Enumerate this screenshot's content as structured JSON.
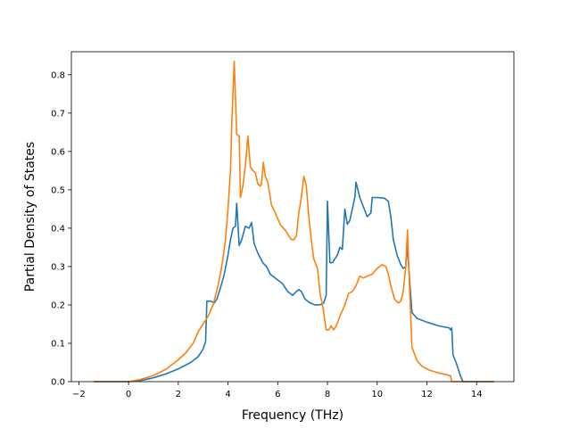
{
  "chart_data": {
    "type": "line",
    "title": "",
    "xlabel": "Frequency (THz)",
    "ylabel": "Partial Density of States",
    "xlim": [
      -2.3,
      15.5
    ],
    "ylim": [
      0.0,
      0.86
    ],
    "xticks": [
      -2,
      0,
      2,
      4,
      6,
      8,
      10,
      12,
      14
    ],
    "yticks": [
      0.0,
      0.1,
      0.2,
      0.3,
      0.4,
      0.5,
      0.6,
      0.7,
      0.8
    ],
    "xtick_labels": [
      "−2",
      "0",
      "2",
      "4",
      "6",
      "8",
      "10",
      "12",
      "14"
    ],
    "ytick_labels": [
      "0.0",
      "0.1",
      "0.2",
      "0.3",
      "0.4",
      "0.5",
      "0.6",
      "0.7",
      "0.8"
    ],
    "grid": false,
    "legend": "none",
    "series": [
      {
        "color": "#1f77b4",
        "points": [
          [
            -1.4,
            0.0
          ],
          [
            0.0,
            0.0
          ],
          [
            0.5,
            0.003
          ],
          [
            1.0,
            0.01
          ],
          [
            1.5,
            0.02
          ],
          [
            2.0,
            0.033
          ],
          [
            2.5,
            0.05
          ],
          [
            2.8,
            0.065
          ],
          [
            3.0,
            0.085
          ],
          [
            3.1,
            0.105
          ],
          [
            3.15,
            0.21
          ],
          [
            3.3,
            0.21
          ],
          [
            3.45,
            0.205
          ],
          [
            3.55,
            0.215
          ],
          [
            3.7,
            0.245
          ],
          [
            3.85,
            0.28
          ],
          [
            4.0,
            0.33
          ],
          [
            4.1,
            0.37
          ],
          [
            4.2,
            0.4
          ],
          [
            4.3,
            0.405
          ],
          [
            4.35,
            0.465
          ],
          [
            4.45,
            0.355
          ],
          [
            4.55,
            0.37
          ],
          [
            4.7,
            0.405
          ],
          [
            4.85,
            0.4
          ],
          [
            4.95,
            0.415
          ],
          [
            5.05,
            0.36
          ],
          [
            5.2,
            0.335
          ],
          [
            5.4,
            0.31
          ],
          [
            5.55,
            0.3
          ],
          [
            5.7,
            0.28
          ],
          [
            6.0,
            0.265
          ],
          [
            6.2,
            0.255
          ],
          [
            6.4,
            0.235
          ],
          [
            6.6,
            0.225
          ],
          [
            6.75,
            0.235
          ],
          [
            6.85,
            0.24
          ],
          [
            6.95,
            0.235
          ],
          [
            7.1,
            0.215
          ],
          [
            7.3,
            0.205
          ],
          [
            7.5,
            0.2
          ],
          [
            7.7,
            0.2
          ],
          [
            7.85,
            0.205
          ],
          [
            7.95,
            0.225
          ],
          [
            8.0,
            0.47
          ],
          [
            8.1,
            0.31
          ],
          [
            8.2,
            0.31
          ],
          [
            8.3,
            0.32
          ],
          [
            8.4,
            0.33
          ],
          [
            8.5,
            0.35
          ],
          [
            8.6,
            0.345
          ],
          [
            8.7,
            0.45
          ],
          [
            8.8,
            0.41
          ],
          [
            8.9,
            0.42
          ],
          [
            9.0,
            0.45
          ],
          [
            9.1,
            0.48
          ],
          [
            9.15,
            0.52
          ],
          [
            9.3,
            0.48
          ],
          [
            9.45,
            0.455
          ],
          [
            9.6,
            0.43
          ],
          [
            9.75,
            0.44
          ],
          [
            9.8,
            0.48
          ],
          [
            10.0,
            0.48
          ],
          [
            10.3,
            0.478
          ],
          [
            10.45,
            0.47
          ],
          [
            10.55,
            0.43
          ],
          [
            10.65,
            0.37
          ],
          [
            10.8,
            0.33
          ],
          [
            10.95,
            0.305
          ],
          [
            11.05,
            0.295
          ],
          [
            11.15,
            0.3
          ],
          [
            11.2,
            0.36
          ],
          [
            11.3,
            0.27
          ],
          [
            11.4,
            0.18
          ],
          [
            11.6,
            0.165
          ],
          [
            12.0,
            0.155
          ],
          [
            12.5,
            0.145
          ],
          [
            12.9,
            0.14
          ],
          [
            12.95,
            0.135
          ],
          [
            13.0,
            0.14
          ],
          [
            13.05,
            0.07
          ],
          [
            13.2,
            0.045
          ],
          [
            13.35,
            0.015
          ],
          [
            13.45,
            0.0
          ],
          [
            14.7,
            0.0
          ]
        ]
      },
      {
        "color": "#ff7f0e",
        "points": [
          [
            -1.4,
            0.0
          ],
          [
            0.0,
            0.0
          ],
          [
            0.5,
            0.006
          ],
          [
            1.0,
            0.016
          ],
          [
            1.5,
            0.032
          ],
          [
            2.0,
            0.057
          ],
          [
            2.3,
            0.075
          ],
          [
            2.6,
            0.1
          ],
          [
            2.8,
            0.13
          ],
          [
            3.0,
            0.15
          ],
          [
            3.2,
            0.17
          ],
          [
            3.4,
            0.2
          ],
          [
            3.6,
            0.25
          ],
          [
            3.75,
            0.3
          ],
          [
            3.9,
            0.37
          ],
          [
            4.0,
            0.45
          ],
          [
            4.1,
            0.55
          ],
          [
            4.15,
            0.67
          ],
          [
            4.25,
            0.835
          ],
          [
            4.3,
            0.74
          ],
          [
            4.35,
            0.645
          ],
          [
            4.45,
            0.64
          ],
          [
            4.5,
            0.48
          ],
          [
            4.6,
            0.51
          ],
          [
            4.7,
            0.565
          ],
          [
            4.8,
            0.64
          ],
          [
            4.9,
            0.56
          ],
          [
            5.0,
            0.55
          ],
          [
            5.1,
            0.545
          ],
          [
            5.2,
            0.515
          ],
          [
            5.3,
            0.51
          ],
          [
            5.35,
            0.515
          ],
          [
            5.42,
            0.572
          ],
          [
            5.5,
            0.535
          ],
          [
            5.6,
            0.52
          ],
          [
            5.75,
            0.46
          ],
          [
            5.9,
            0.44
          ],
          [
            6.1,
            0.41
          ],
          [
            6.3,
            0.395
          ],
          [
            6.45,
            0.38
          ],
          [
            6.55,
            0.37
          ],
          [
            6.65,
            0.37
          ],
          [
            6.75,
            0.38
          ],
          [
            6.85,
            0.44
          ],
          [
            6.95,
            0.48
          ],
          [
            7.05,
            0.535
          ],
          [
            7.15,
            0.51
          ],
          [
            7.25,
            0.43
          ],
          [
            7.35,
            0.37
          ],
          [
            7.45,
            0.32
          ],
          [
            7.6,
            0.295
          ],
          [
            7.7,
            0.23
          ],
          [
            7.8,
            0.2
          ],
          [
            7.95,
            0.135
          ],
          [
            8.05,
            0.135
          ],
          [
            8.15,
            0.145
          ],
          [
            8.25,
            0.135
          ],
          [
            8.35,
            0.145
          ],
          [
            8.5,
            0.17
          ],
          [
            8.7,
            0.2
          ],
          [
            8.85,
            0.23
          ],
          [
            9.0,
            0.235
          ],
          [
            9.15,
            0.25
          ],
          [
            9.3,
            0.275
          ],
          [
            9.45,
            0.27
          ],
          [
            9.6,
            0.275
          ],
          [
            9.8,
            0.28
          ],
          [
            10.0,
            0.295
          ],
          [
            10.2,
            0.305
          ],
          [
            10.35,
            0.3
          ],
          [
            10.45,
            0.28
          ],
          [
            10.55,
            0.25
          ],
          [
            10.7,
            0.215
          ],
          [
            10.85,
            0.205
          ],
          [
            10.95,
            0.21
          ],
          [
            11.05,
            0.235
          ],
          [
            11.15,
            0.3
          ],
          [
            11.22,
            0.395
          ],
          [
            11.3,
            0.25
          ],
          [
            11.4,
            0.09
          ],
          [
            11.6,
            0.055
          ],
          [
            11.8,
            0.04
          ],
          [
            12.1,
            0.03
          ],
          [
            12.5,
            0.022
          ],
          [
            12.8,
            0.018
          ],
          [
            12.95,
            0.015
          ],
          [
            13.0,
            0.0
          ],
          [
            14.7,
            0.0
          ]
        ]
      }
    ]
  }
}
